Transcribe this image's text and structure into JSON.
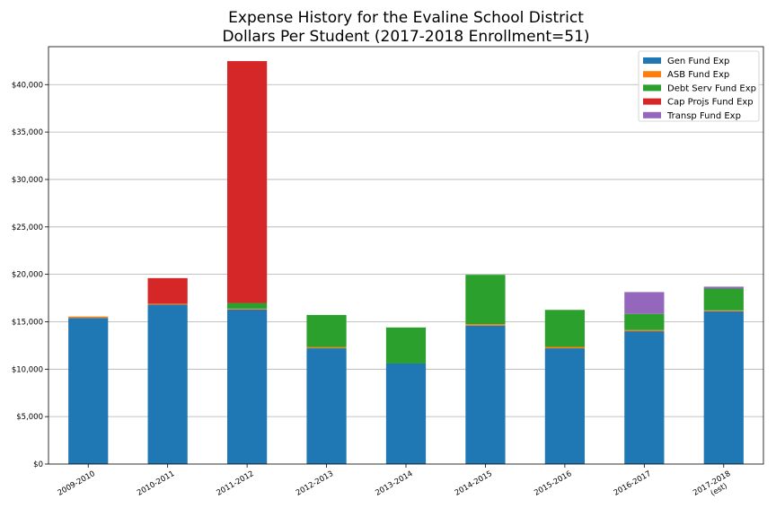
{
  "chart_data": {
    "type": "bar",
    "stacked": true,
    "title": "Expense History for the Evaline School District",
    "subtitle": "Dollars Per Student (2017-2018 Enrollment=51)",
    "xlabel": "",
    "ylabel": "",
    "ylim": [
      0,
      44000
    ],
    "yticks": [
      0,
      5000,
      10000,
      15000,
      20000,
      25000,
      30000,
      35000,
      40000
    ],
    "ytick_labels": [
      "$0",
      "$5,000",
      "$10,000",
      "$15,000",
      "$20,000",
      "$25,000",
      "$30,000",
      "$35,000",
      "$40,000"
    ],
    "grid": "horizontal",
    "legend_position": "top-right",
    "categories": [
      "2009-2010",
      "2010-2011",
      "2011-2012",
      "2012-2013",
      "2013-2014",
      "2014-2015",
      "2015-2016",
      "2016-2017",
      "2017-2018"
    ],
    "category_sublabels": [
      "",
      "",
      "",
      "",
      "",
      "",
      "",
      "",
      "(est)"
    ],
    "series": [
      {
        "name": "Gen Fund Exp",
        "color": "#1f77b4",
        "values": [
          15400,
          16800,
          16300,
          12200,
          10600,
          14600,
          12200,
          14000,
          16100
        ]
      },
      {
        "name": "ASB Fund Exp",
        "color": "#ff7f0e",
        "values": [
          150,
          100,
          80,
          120,
          0,
          150,
          150,
          130,
          100
        ]
      },
      {
        "name": "Debt Serv Fund Exp",
        "color": "#2ca02c",
        "values": [
          0,
          0,
          600,
          3400,
          3800,
          5200,
          3900,
          1700,
          2300
        ]
      },
      {
        "name": "Cap Projs Fund Exp",
        "color": "#d62728",
        "values": [
          0,
          2700,
          25500,
          0,
          0,
          0,
          0,
          0,
          0
        ]
      },
      {
        "name": "Transp Fund Exp",
        "color": "#9467bd",
        "values": [
          0,
          0,
          0,
          0,
          0,
          0,
          0,
          2300,
          200
        ]
      }
    ]
  }
}
